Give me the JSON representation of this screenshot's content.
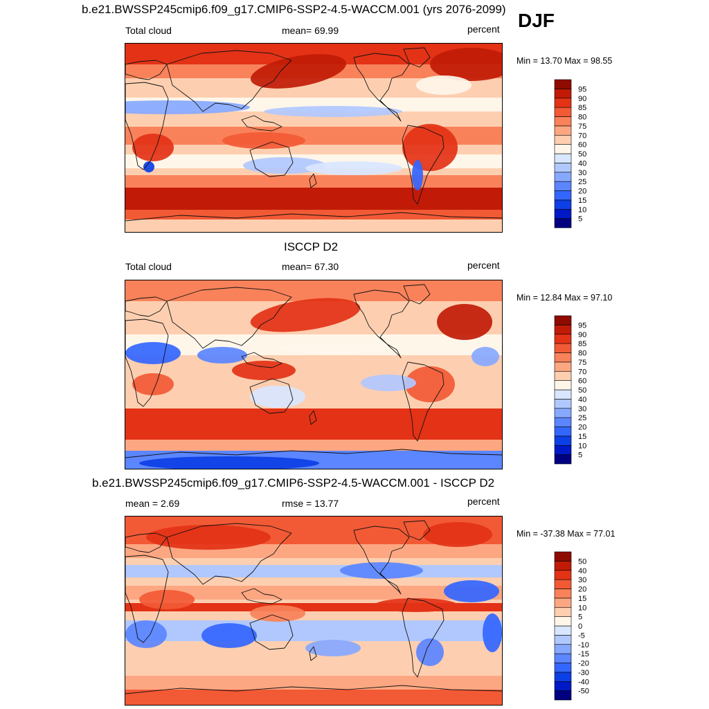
{
  "season": "DJF",
  "panels": [
    {
      "title": "b.e21.BWSSP245cmip6.f09_g17.CMIP6-SSP2-4.5-WACCM.001 (yrs 2076-2099)",
      "left_label": "Total cloud",
      "center_label": "mean=  69.99",
      "right_label": "percent",
      "minmax": "Min =  13.70 Max =  98.55"
    },
    {
      "title": "ISCCP D2",
      "left_label": "Total cloud",
      "center_label": "mean=  67.30",
      "right_label": "percent",
      "minmax": "Min =  12.84 Max =  97.10"
    },
    {
      "title": "b.e21.BWSSP245cmip6.f09_g17.CMIP6-SSP2-4.5-WACCM.001 - ISCCP D2",
      "left_label": "mean =   2.69",
      "center_label": "rmse =  13.77",
      "right_label": "percent",
      "minmax": "Min = -37.38 Max =  77.01"
    }
  ],
  "chart_data": [
    {
      "type": "heatmap",
      "title": "b.e21.BWSSP245cmip6.f09_g17.CMIP6-SSP2-4.5-WACCM.001 (yrs 2076-2099)",
      "variable": "Total cloud",
      "units": "percent",
      "mean": 69.99,
      "min": 13.7,
      "max": 98.55,
      "colorbar_levels": [
        5,
        10,
        15,
        20,
        25,
        30,
        40,
        50,
        60,
        70,
        75,
        80,
        85,
        90,
        95
      ],
      "colorbar_colors": [
        "#000080",
        "#0019c7",
        "#0d3fe6",
        "#3366ff",
        "#5b86ff",
        "#87a8ff",
        "#b1c8ff",
        "#d9e6ff",
        "#fff6ea",
        "#fdcfb0",
        "#fca782",
        "#f9825a",
        "#f25a35",
        "#e33216",
        "#c11b07",
        "#8f0b00"
      ]
    },
    {
      "type": "heatmap",
      "title": "ISCCP D2",
      "variable": "Total cloud",
      "units": "percent",
      "mean": 67.3,
      "min": 12.84,
      "max": 97.1,
      "colorbar_levels": [
        5,
        10,
        15,
        20,
        25,
        30,
        40,
        50,
        60,
        70,
        75,
        80,
        85,
        90,
        95
      ],
      "colorbar_colors": [
        "#000080",
        "#0019c7",
        "#0d3fe6",
        "#3366ff",
        "#5b86ff",
        "#87a8ff",
        "#b1c8ff",
        "#d9e6ff",
        "#fff6ea",
        "#fdcfb0",
        "#fca782",
        "#f9825a",
        "#f25a35",
        "#e33216",
        "#c11b07",
        "#8f0b00"
      ]
    },
    {
      "type": "heatmap",
      "title": "b.e21.BWSSP245cmip6.f09_g17.CMIP6-SSP2-4.5-WACCM.001 - ISCCP D2",
      "units": "percent",
      "mean": 2.69,
      "rmse": 13.77,
      "min": -37.38,
      "max": 77.01,
      "colorbar_levels": [
        -50,
        -40,
        -30,
        -20,
        -15,
        -10,
        -5,
        0,
        5,
        10,
        15,
        20,
        30,
        40,
        50
      ],
      "colorbar_colors": [
        "#000080",
        "#0019c7",
        "#0d3fe6",
        "#3366ff",
        "#5b86ff",
        "#87a8ff",
        "#b1c8ff",
        "#d9e6ff",
        "#fff6ea",
        "#fdcfb0",
        "#fca782",
        "#f9825a",
        "#f25a35",
        "#e33216",
        "#c11b07",
        "#8f0b00"
      ]
    }
  ]
}
